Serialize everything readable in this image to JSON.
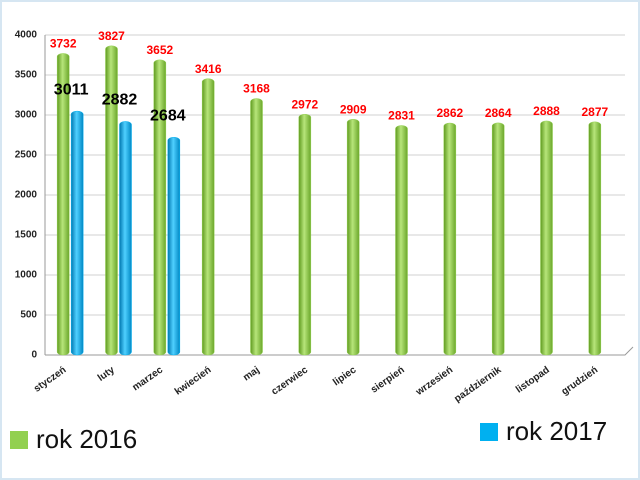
{
  "chart_data": {
    "type": "bar",
    "categories": [
      "styczeń",
      "luty",
      "marzec",
      "kwiecień",
      "maj",
      "czerwiec",
      "lipiec",
      "sierpień",
      "wrzesień",
      "październik",
      "listopad",
      "grudzień"
    ],
    "series": [
      {
        "name": "rok 2016",
        "color": "#92d050",
        "label_color": "#ff0000",
        "values": [
          3732,
          3827,
          3652,
          3416,
          3168,
          2972,
          2909,
          2831,
          2862,
          2864,
          2888,
          2877
        ]
      },
      {
        "name": "rok 2017",
        "color": "#00b0f0",
        "label_color": "#000000",
        "values": [
          3011,
          2882,
          2684,
          null,
          null,
          null,
          null,
          null,
          null,
          null,
          null,
          null
        ]
      }
    ],
    "ylim": [
      0,
      4000
    ],
    "yticks": [
      0,
      500,
      1000,
      1500,
      2000,
      2500,
      3000,
      3500,
      4000
    ],
    "grid": true
  }
}
